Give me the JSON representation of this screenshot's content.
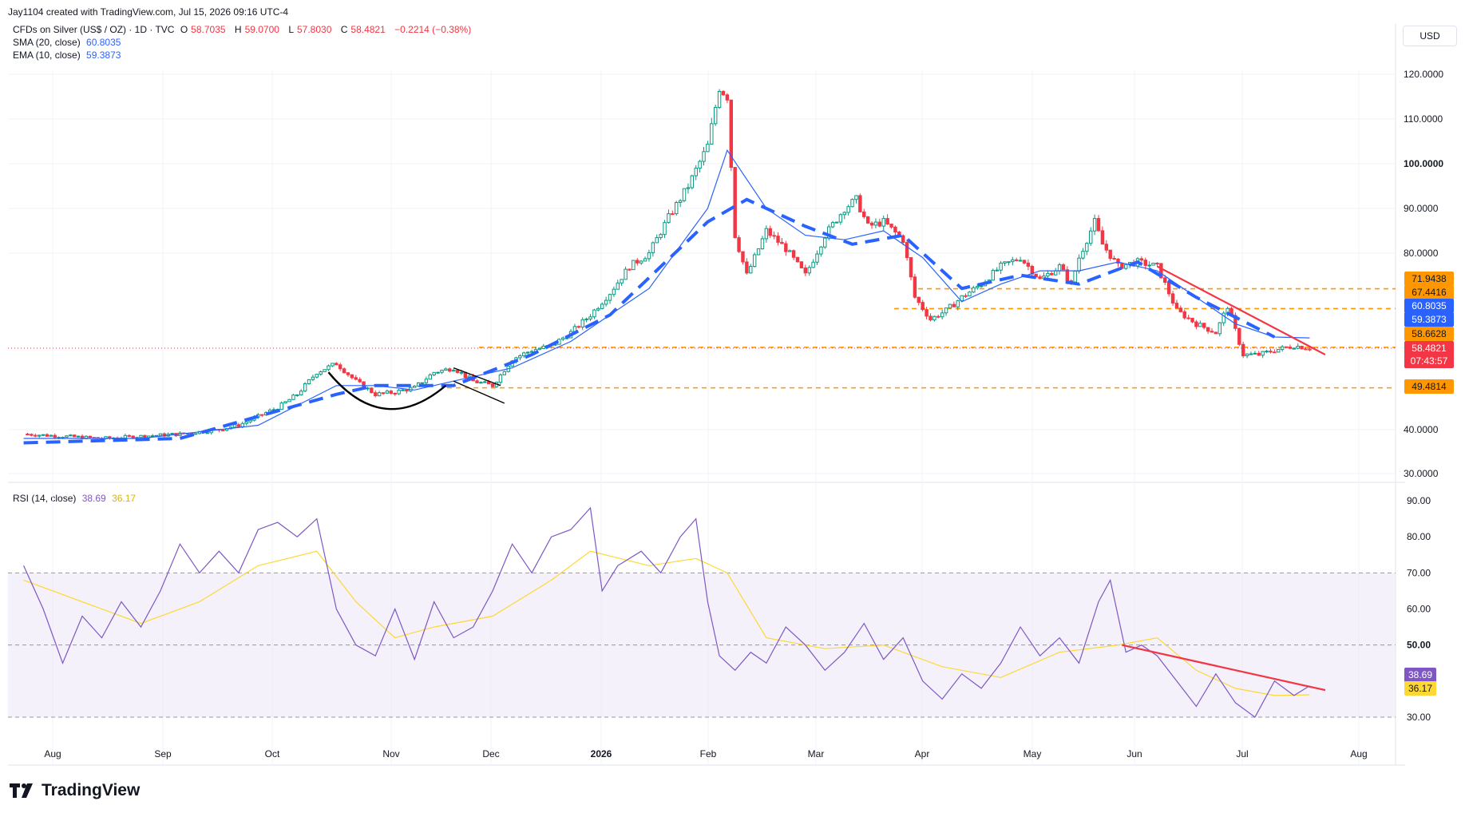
{
  "header": {
    "credit": "Jay1104 created with TradingView.com, Jul 15, 2026 09:16 UTC-4"
  },
  "legend": {
    "symbol": "CFDs on Silver (US$ / OZ) · 1D · TVC",
    "open_label": "O",
    "open": "58.7035",
    "high_label": "H",
    "high": "59.0700",
    "low_label": "L",
    "low": "57.8030",
    "close_label": "C",
    "close": "58.4821",
    "change": "−0.2214 (−0.38%)",
    "sma_label": "SMA (20, close)",
    "sma_value": "60.8035",
    "ema_label": "EMA (10, close)",
    "ema_value": "59.3873",
    "rsi_label": "RSI (14, close)",
    "rsi_value": "38.69",
    "rsi_ma_value": "36.17"
  },
  "currency_button": "USD",
  "brand": "TradingView",
  "colors": {
    "up": "#089981",
    "down": "#f23645",
    "sma": "#2962ff",
    "ema": "#2962ff",
    "dashed_trend": "#2962ff",
    "support": "#ff9800",
    "resist_trend": "#f23645",
    "rsi": "#7e57c2",
    "rsi_ma": "#fdd835",
    "rsi_band": "#ede7f6"
  },
  "chart_data": [
    {
      "type": "candlestick",
      "y_axis_ticks": [
        "120.0000",
        "110.0000",
        "100.0000",
        "90.0000",
        "80.0000",
        "40.0000",
        "30.0000"
      ],
      "ylim": [
        28,
        124
      ],
      "x_axis_ticks": [
        "Aug",
        "Sep",
        "Oct",
        "Nov",
        "Dec",
        "2026",
        "Feb",
        "Mar",
        "Apr",
        "May",
        "Jun",
        "Jul",
        "Aug"
      ],
      "price_labels": [
        {
          "value": "71.9438",
          "kind": "support"
        },
        {
          "value": "67.4416",
          "kind": "support"
        },
        {
          "value": "60.8035",
          "kind": "sma"
        },
        {
          "value": "59.3873",
          "kind": "ema"
        },
        {
          "value": "58.6628",
          "kind": "support"
        },
        {
          "value": "58.4821",
          "kind": "last"
        },
        {
          "value": "07:43:57",
          "kind": "countdown"
        },
        {
          "value": "49.4814",
          "kind": "support"
        }
      ],
      "support_levels": [
        71.94,
        67.44,
        58.66,
        49.48
      ],
      "close_path": [
        [
          0,
          39
        ],
        [
          10,
          38.5
        ],
        [
          20,
          38
        ],
        [
          30,
          38.5
        ],
        [
          40,
          39
        ],
        [
          50,
          40
        ],
        [
          55,
          41
        ],
        [
          60,
          43
        ],
        [
          65,
          45
        ],
        [
          70,
          48
        ],
        [
          75,
          53
        ],
        [
          80,
          55
        ],
        [
          85,
          51
        ],
        [
          90,
          48
        ],
        [
          95,
          48.5
        ],
        [
          100,
          49.5
        ],
        [
          105,
          53
        ],
        [
          110,
          54
        ],
        [
          115,
          51
        ],
        [
          120,
          50
        ],
        [
          125,
          56
        ],
        [
          130,
          58
        ],
        [
          135,
          59
        ],
        [
          140,
          62
        ],
        [
          145,
          66
        ],
        [
          150,
          71
        ],
        [
          155,
          77
        ],
        [
          160,
          80
        ],
        [
          165,
          88
        ],
        [
          170,
          95
        ],
        [
          175,
          104
        ],
        [
          178,
          117
        ],
        [
          180,
          115
        ],
        [
          182,
          84
        ],
        [
          185,
          75
        ],
        [
          190,
          85
        ],
        [
          195,
          81
        ],
        [
          200,
          75
        ],
        [
          205,
          84
        ],
        [
          210,
          90
        ],
        [
          213,
          92
        ],
        [
          216,
          86
        ],
        [
          220,
          87
        ],
        [
          225,
          83
        ],
        [
          228,
          70
        ],
        [
          232,
          65
        ],
        [
          236,
          67
        ],
        [
          240,
          70
        ],
        [
          245,
          73
        ],
        [
          250,
          77
        ],
        [
          255,
          79
        ],
        [
          260,
          74
        ],
        [
          265,
          77
        ],
        [
          268,
          73
        ],
        [
          270,
          79
        ],
        [
          274,
          87
        ],
        [
          276,
          82
        ],
        [
          280,
          77
        ],
        [
          285,
          78
        ],
        [
          290,
          77
        ],
        [
          295,
          67
        ],
        [
          300,
          64
        ],
        [
          305,
          62
        ],
        [
          308,
          68
        ],
        [
          312,
          57
        ],
        [
          316,
          57
        ],
        [
          320,
          58
        ],
        [
          325,
          59
        ],
        [
          329,
          58.5
        ]
      ],
      "sma_path": [
        [
          0,
          38
        ],
        [
          30,
          38
        ],
        [
          60,
          41
        ],
        [
          80,
          50
        ],
        [
          90,
          50
        ],
        [
          100,
          49
        ],
        [
          110,
          51
        ],
        [
          125,
          54
        ],
        [
          140,
          60
        ],
        [
          160,
          72
        ],
        [
          175,
          90
        ],
        [
          180,
          103
        ],
        [
          190,
          90
        ],
        [
          200,
          84
        ],
        [
          210,
          83
        ],
        [
          220,
          85
        ],
        [
          230,
          79
        ],
        [
          240,
          69
        ],
        [
          250,
          73
        ],
        [
          260,
          76
        ],
        [
          270,
          76
        ],
        [
          280,
          78
        ],
        [
          290,
          76
        ],
        [
          300,
          70
        ],
        [
          310,
          64
        ],
        [
          320,
          61
        ],
        [
          329,
          60.8
        ]
      ],
      "dashed_trend_path": [
        [
          0,
          37
        ],
        [
          40,
          38
        ],
        [
          80,
          48
        ],
        [
          90,
          50
        ],
        [
          110,
          50
        ],
        [
          130,
          57
        ],
        [
          150,
          66
        ],
        [
          175,
          87
        ],
        [
          185,
          92
        ],
        [
          200,
          86
        ],
        [
          212,
          82
        ],
        [
          225,
          84
        ],
        [
          240,
          72
        ],
        [
          255,
          75
        ],
        [
          270,
          73
        ],
        [
          285,
          78
        ],
        [
          300,
          70
        ],
        [
          320,
          61
        ]
      ],
      "resistance_trend": [
        [
          290,
          77
        ],
        [
          333,
          57
        ]
      ]
    },
    {
      "type": "line",
      "name": "RSI",
      "y_axis_ticks": [
        "90.00",
        "80.00",
        "70.00",
        "60.00",
        "50.00",
        "40.00",
        "30.00"
      ],
      "ylim": [
        26,
        92
      ],
      "bands": [
        70,
        50,
        30
      ],
      "rsi_path": [
        [
          0,
          72
        ],
        [
          5,
          60
        ],
        [
          10,
          45
        ],
        [
          15,
          58
        ],
        [
          20,
          52
        ],
        [
          25,
          62
        ],
        [
          30,
          55
        ],
        [
          35,
          65
        ],
        [
          40,
          78
        ],
        [
          45,
          70
        ],
        [
          50,
          76
        ],
        [
          55,
          70
        ],
        [
          60,
          82
        ],
        [
          65,
          84
        ],
        [
          70,
          80
        ],
        [
          75,
          85
        ],
        [
          80,
          60
        ],
        [
          85,
          50
        ],
        [
          90,
          47
        ],
        [
          95,
          60
        ],
        [
          100,
          46
        ],
        [
          105,
          62
        ],
        [
          110,
          52
        ],
        [
          115,
          55
        ],
        [
          120,
          65
        ],
        [
          125,
          78
        ],
        [
          130,
          70
        ],
        [
          135,
          80
        ],
        [
          140,
          82
        ],
        [
          145,
          88
        ],
        [
          148,
          65
        ],
        [
          152,
          72
        ],
        [
          158,
          76
        ],
        [
          163,
          70
        ],
        [
          168,
          80
        ],
        [
          172,
          85
        ],
        [
          175,
          62
        ],
        [
          178,
          47
        ],
        [
          182,
          43
        ],
        [
          186,
          48
        ],
        [
          190,
          45
        ],
        [
          195,
          55
        ],
        [
          200,
          50
        ],
        [
          205,
          43
        ],
        [
          210,
          48
        ],
        [
          215,
          56
        ],
        [
          220,
          46
        ],
        [
          225,
          52
        ],
        [
          230,
          40
        ],
        [
          235,
          35
        ],
        [
          240,
          42
        ],
        [
          245,
          38
        ],
        [
          250,
          45
        ],
        [
          255,
          55
        ],
        [
          260,
          47
        ],
        [
          265,
          52
        ],
        [
          270,
          45
        ],
        [
          275,
          62
        ],
        [
          278,
          68
        ],
        [
          282,
          48
        ],
        [
          286,
          50
        ],
        [
          290,
          47
        ],
        [
          295,
          40
        ],
        [
          300,
          33
        ],
        [
          305,
          42
        ],
        [
          310,
          34
        ],
        [
          315,
          30
        ],
        [
          320,
          40
        ],
        [
          325,
          36
        ],
        [
          329,
          38.7
        ]
      ],
      "rsi_ma_path": [
        [
          0,
          68
        ],
        [
          15,
          62
        ],
        [
          30,
          56
        ],
        [
          45,
          62
        ],
        [
          60,
          72
        ],
        [
          75,
          76
        ],
        [
          85,
          62
        ],
        [
          95,
          52
        ],
        [
          105,
          55
        ],
        [
          120,
          58
        ],
        [
          135,
          68
        ],
        [
          145,
          76
        ],
        [
          160,
          72
        ],
        [
          172,
          74
        ],
        [
          180,
          70
        ],
        [
          190,
          52
        ],
        [
          205,
          49
        ],
        [
          220,
          50
        ],
        [
          235,
          44
        ],
        [
          250,
          41
        ],
        [
          265,
          48
        ],
        [
          280,
          50
        ],
        [
          290,
          52
        ],
        [
          300,
          43
        ],
        [
          310,
          38
        ],
        [
          320,
          36
        ],
        [
          329,
          36.2
        ]
      ],
      "rsi_trend": [
        [
          281,
          50
        ],
        [
          333,
          37.5
        ]
      ]
    }
  ]
}
